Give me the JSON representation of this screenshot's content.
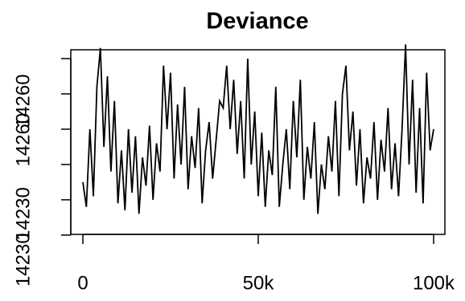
{
  "chart_data": {
    "type": "line",
    "title": "Deviance",
    "color": "#000000",
    "x": [
      0,
      1000,
      2000,
      3000,
      4000,
      5000,
      6000,
      7000,
      8000,
      9000,
      10000,
      11000,
      12000,
      13000,
      14000,
      15000,
      16000,
      17000,
      18000,
      19000,
      20000,
      21000,
      22000,
      23000,
      24000,
      25000,
      26000,
      27000,
      28000,
      29000,
      30000,
      31000,
      32000,
      33000,
      34000,
      35000,
      36000,
      37000,
      38000,
      39000,
      40000,
      41000,
      42000,
      43000,
      44000,
      45000,
      46000,
      47000,
      48000,
      49000,
      50000,
      51000,
      52000,
      53000,
      54000,
      55000,
      56000,
      57000,
      58000,
      59000,
      60000,
      61000,
      62000,
      63000,
      64000,
      65000,
      66000,
      67000,
      68000,
      69000,
      70000,
      71000,
      72000,
      73000,
      74000,
      75000,
      76000,
      77000,
      78000,
      79000,
      80000,
      81000,
      82000,
      83000,
      84000,
      85000,
      86000,
      87000,
      88000,
      89000,
      90000,
      91000,
      92000,
      93000,
      94000,
      95000,
      96000,
      97000,
      98000,
      99000,
      100000
    ],
    "values": [
      14235,
      14228,
      14250,
      14231,
      14262,
      14273,
      14245,
      14265,
      14238,
      14258,
      14229,
      14244,
      14227,
      14250,
      14232,
      14248,
      14226,
      14242,
      14234,
      14251,
      14230,
      14246,
      14238,
      14268,
      14250,
      14266,
      14236,
      14257,
      14240,
      14262,
      14233,
      14248,
      14239,
      14256,
      14229,
      14244,
      14252,
      14236,
      14247,
      14258,
      14256,
      14268,
      14250,
      14264,
      14243,
      14258,
      14236,
      14270,
      14240,
      14255,
      14231,
      14249,
      14228,
      14244,
      14237,
      14262,
      14228,
      14240,
      14250,
      14233,
      14258,
      14242,
      14264,
      14230,
      14245,
      14236,
      14252,
      14226,
      14240,
      14233,
      14248,
      14238,
      14258,
      14231,
      14260,
      14268,
      14244,
      14255,
      14234,
      14250,
      14229,
      14242,
      14236,
      14252,
      14230,
      14247,
      14238,
      14256,
      14233,
      14246,
      14231,
      14250,
      14274,
      14240,
      14264,
      14232,
      14256,
      14229,
      14266,
      14244,
      14250
    ],
    "xlim": [
      -3440,
      103210
    ],
    "ylim": [
      14220.2,
      14272.5
    ],
    "xticks": [
      0,
      {
        "value": 50000,
        "label": "50k"
      },
      {
        "value": 100000,
        "label": "100k"
      }
    ],
    "yticks": [
      14220,
      14230,
      14240,
      14250,
      14260,
      14270
    ],
    "ytick_labels": [
      {
        "value": 14258,
        "label": "14260"
      },
      {
        "value": 14247,
        "label": "14260"
      },
      {
        "value": 14226,
        "label": "14230"
      },
      {
        "value": 14213,
        "label": "14230"
      }
    ]
  }
}
